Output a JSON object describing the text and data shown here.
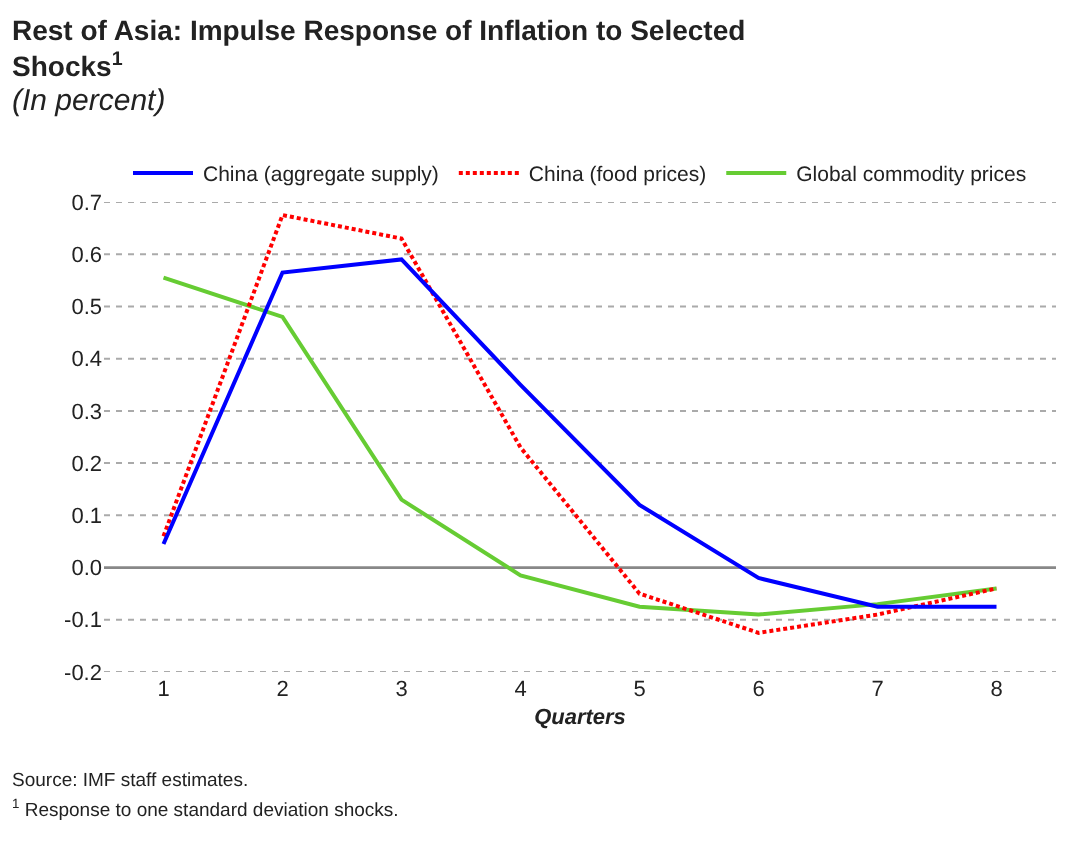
{
  "chart_data": {
    "type": "line",
    "title": "Rest of Asia: Impulse Response of Inflation to Selected Shocks$^{1}$",
    "subtitle": "(In percent)",
    "xlabel": "Quarters",
    "categories": [
      "1",
      "2",
      "3",
      "4",
      "5",
      "6",
      "7",
      "8"
    ],
    "series": [
      {
        "name": "China (aggregate supply)",
        "color": "#0000ff",
        "line_style": "solid",
        "values": [
          0.045,
          0.565,
          0.59,
          0.35,
          0.12,
          -0.02,
          -0.075,
          -0.075
        ]
      },
      {
        "name": "China (food prices)",
        "color": "#ff0000",
        "line_style": "dotted",
        "values": [
          0.06,
          0.675,
          0.63,
          0.23,
          -0.05,
          -0.125,
          -0.09,
          -0.04
        ]
      },
      {
        "name": "Global commodity prices",
        "color": "#66cc33",
        "line_style": "solid",
        "values": [
          0.555,
          0.48,
          0.13,
          -0.015,
          -0.075,
          -0.09,
          -0.07,
          -0.04
        ]
      }
    ],
    "ylim": [
      -0.2,
      0.7
    ],
    "yticks": [
      {
        "value": -0.2,
        "label": "-0.2"
      },
      {
        "value": -0.1,
        "label": "-0.1"
      },
      {
        "value": 0,
        "label": "0.0"
      },
      0.1,
      0.2,
      0.3,
      0.4,
      0.5,
      0.6,
      0.7
    ],
    "grid": "y",
    "legend": "top",
    "marker": "none",
    "annotations": [
      "Source: IMF staff estimates.",
      "$^{1}$ Response to one standard deviation shocks."
    ]
  }
}
